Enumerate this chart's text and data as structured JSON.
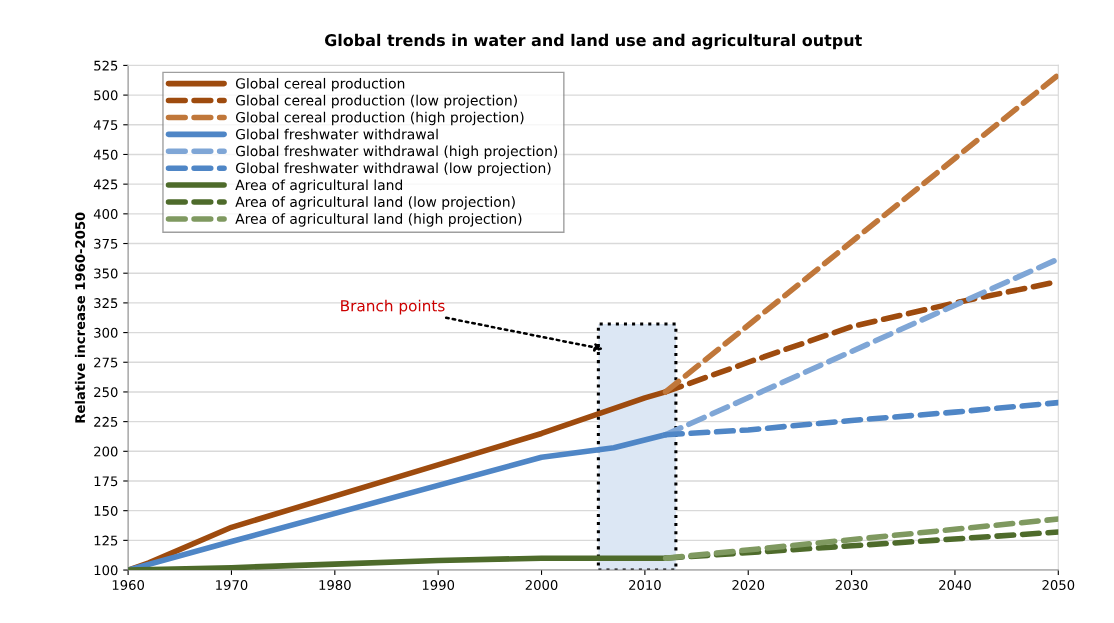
{
  "chart_data": {
    "type": "line",
    "title": "Global trends in water and land use and agricultural output",
    "ylabel": "Relative increase 1960-2050",
    "xlim": [
      1960,
      2050
    ],
    "ylim": [
      100,
      525
    ],
    "xticks": [
      1960,
      1970,
      1980,
      1990,
      2000,
      2010,
      2020,
      2030,
      2040,
      2050
    ],
    "yticks": [
      100,
      125,
      150,
      175,
      200,
      225,
      250,
      275,
      300,
      325,
      350,
      375,
      400,
      425,
      450,
      475,
      500,
      525
    ],
    "grid": "y",
    "legend": "top left",
    "line_style": "solid",
    "annotations": [
      {
        "text": "Branch points",
        "x": 2006,
        "y": 286
      }
    ],
    "bands": [
      {
        "axis": "x",
        "from": 2005.5,
        "to": 2013,
        "color": "#dce7f4"
      }
    ],
    "series": [
      {
        "name": "Global cereal production",
        "color": "#9e4b0e",
        "x": [
          1960,
          1962,
          1970,
          2000,
          2010,
          2012
        ],
        "values": [
          100,
          106,
          136,
          215,
          245,
          250
        ]
      },
      {
        "name": "Global cereal production (low projection)",
        "color": "#9e4b0e",
        "line_style": "dashed",
        "x": [
          2012,
          2020,
          2030,
          2040,
          2050
        ],
        "values": [
          250,
          275,
          305,
          325,
          343
        ]
      },
      {
        "name": "Global cereal production (high projection)",
        "color": "#c0773a",
        "line_style": "dashed",
        "x": [
          2012,
          2050
        ],
        "values": [
          250,
          517
        ]
      },
      {
        "name": "Global freshwater withdrawal",
        "color": "#4f86c6",
        "x": [
          1960,
          1970,
          2000,
          2007,
          2012
        ],
        "values": [
          100,
          124,
          195,
          203,
          214
        ]
      },
      {
        "name": "Global freshwater withdrawal (high projection)",
        "color": "#7fa6d6",
        "line_style": "dashed",
        "x": [
          2012,
          2050
        ],
        "values": [
          214,
          362
        ]
      },
      {
        "name": "Global freshwater withdrawal (low projection)",
        "color": "#4f86c6",
        "line_style": "dashed",
        "x": [
          2012,
          2020,
          2030,
          2040,
          2050
        ],
        "values": [
          214,
          218,
          226,
          233,
          241
        ]
      },
      {
        "name": "Area of agricultural land",
        "color": "#4e6b2b",
        "x": [
          1960,
          1970,
          1980,
          1990,
          2000,
          2012
        ],
        "values": [
          100,
          102,
          105,
          108,
          110,
          110
        ]
      },
      {
        "name": "Area of agricultural land (low projection)",
        "color": "#4e6b2b",
        "line_style": "dashed",
        "x": [
          2012,
          2050
        ],
        "values": [
          110,
          132
        ]
      },
      {
        "name": "Area of agricultural land (high projection)",
        "color": "#7f9960",
        "line_style": "dashed",
        "x": [
          2012,
          2050
        ],
        "values": [
          110,
          143
        ]
      }
    ]
  }
}
